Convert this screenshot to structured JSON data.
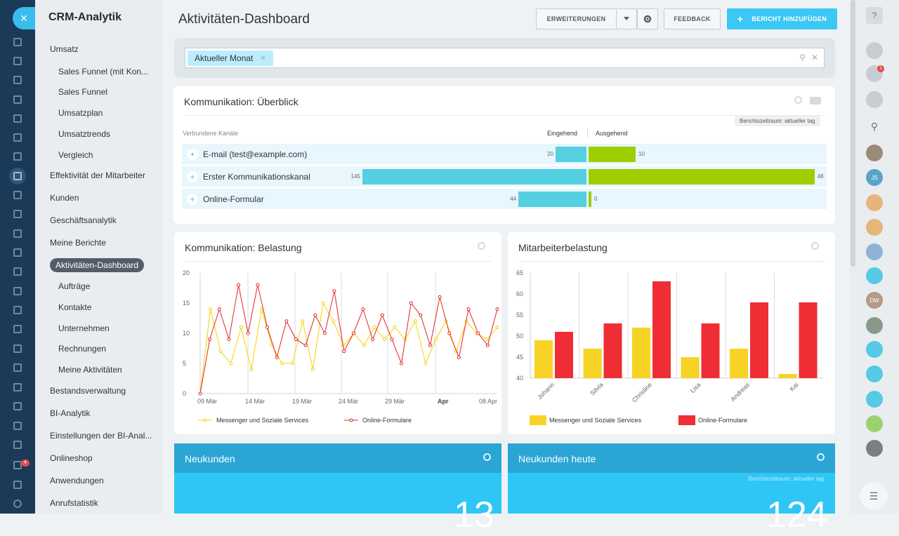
{
  "iconbar": {
    "close_icon": "×",
    "notification_count": "4"
  },
  "menu": {
    "title": "CRM-Analytik",
    "items": [
      {
        "label": "Umsatz",
        "type": "top"
      },
      {
        "label": "Sales Funnel (mit Kon...",
        "type": "sub"
      },
      {
        "label": "Sales Funnel",
        "type": "sub"
      },
      {
        "label": "Umsatzplan",
        "type": "sub"
      },
      {
        "label": "Umsatztrends",
        "type": "sub"
      },
      {
        "label": "Vergleich",
        "type": "sub"
      },
      {
        "label": "Effektivität der Mitarbeiter",
        "type": "top"
      },
      {
        "label": "Kunden",
        "type": "top"
      },
      {
        "label": "Geschäftsanalytik",
        "type": "top"
      },
      {
        "label": "Meine Berichte",
        "type": "top"
      },
      {
        "label": "Aktivitäten-Dashboard",
        "type": "active"
      },
      {
        "label": "Aufträge",
        "type": "sub"
      },
      {
        "label": "Kontakte",
        "type": "sub"
      },
      {
        "label": "Unternehmen",
        "type": "sub"
      },
      {
        "label": "Rechnungen",
        "type": "sub"
      },
      {
        "label": "Meine Aktivitäten",
        "type": "sub"
      },
      {
        "label": "Bestandsverwaltung",
        "type": "top"
      },
      {
        "label": "BI-Analytik",
        "type": "top"
      },
      {
        "label": "Einstellungen der BI-Anal...",
        "type": "top"
      },
      {
        "label": "Onlineshop",
        "type": "top"
      },
      {
        "label": "Anwendungen",
        "type": "top"
      },
      {
        "label": "Anrufstatistik",
        "type": "top"
      }
    ]
  },
  "header": {
    "title": "Aktivitäten-Dashboard",
    "extensions_label": "ERWEITERUNGEN",
    "feedback_label": "FEEDBACK",
    "add_report_label": "BERICHT HINZUFÜGEN"
  },
  "filter": {
    "chip_label": "Aktueller Monat"
  },
  "overview": {
    "title": "Kommunikation: Überblick",
    "period_tag": "Berichtszeitraum: aktueller tag",
    "col_channels": "Verbundene Kanäle",
    "col_in": "Eingehend",
    "col_out": "Ausgehend",
    "rows": [
      {
        "label": "E-mail (test@example.com)",
        "in": 20,
        "out": 10,
        "in_text": "20",
        "out_text": "10"
      },
      {
        "label": "Erster Kommunikationskanal",
        "in": 145,
        "out": 48,
        "in_text": "145",
        "out_text": "48"
      },
      {
        "label": "Online-Formular",
        "in": 44,
        "out": 0,
        "in_text": "44",
        "out_text": "0"
      }
    ]
  },
  "load_card": {
    "title": "Kommunikation: Belastung"
  },
  "employee_card": {
    "title": "Mitarbeiterbelastung"
  },
  "chart_data": [
    {
      "type": "line",
      "title": "Kommunikation: Belastung",
      "ylim": [
        0,
        20
      ],
      "yticks": [
        "0",
        "5",
        "10",
        "15",
        "20"
      ],
      "xtick_labels": [
        "09 Mär",
        "14 Mär",
        "19 Mär",
        "24 Mär",
        "29 Mär",
        "Apr",
        "08 Apr"
      ],
      "colors": {
        "Messenger und Soziale Services": "#f7d000",
        "Online-Formulare": "#e52222"
      },
      "series": [
        {
          "name": "Messenger und Soziale Services",
          "values": [
            0,
            14,
            7,
            5,
            11,
            4,
            14,
            8,
            5,
            5,
            12,
            4,
            15,
            12,
            8,
            10,
            8,
            11,
            9,
            11,
            9,
            12,
            5,
            9,
            12,
            7,
            12,
            10,
            9,
            11
          ]
        },
        {
          "name": "Online-Formulare",
          "values": [
            0,
            9,
            14,
            9,
            18,
            10,
            18,
            11,
            6,
            12,
            9,
            8,
            13,
            10,
            17,
            7,
            10,
            14,
            9,
            13,
            9,
            5,
            15,
            13,
            8,
            16,
            10,
            6,
            14,
            10,
            8,
            14
          ]
        }
      ]
    },
    {
      "type": "bar",
      "title": "Mitarbeiterbelastung",
      "ylim": [
        40,
        65
      ],
      "yticks": [
        "40",
        "45",
        "50",
        "55",
        "60",
        "65"
      ],
      "categories": [
        "Johann",
        "Silvia",
        "Christine",
        "Lisa",
        "Andreas",
        "Kai"
      ],
      "colors": {
        "Messenger und Soziale Services": "#f7d325",
        "Online-Formulare": "#ee2e34"
      },
      "series": [
        {
          "name": "Messenger und Soziale Services",
          "values": [
            49,
            47,
            52,
            45,
            47,
            41
          ]
        },
        {
          "name": "Online-Formulare",
          "values": [
            51,
            53,
            63,
            53,
            58,
            58
          ]
        }
      ]
    }
  ],
  "new_customers": {
    "title": "Neukunden",
    "value": "13"
  },
  "new_customers_today": {
    "title": "Neukunden heute",
    "period_tag": "Berichtszeitraum: aktueller tag",
    "value": "124"
  },
  "rightbar": {
    "help": "?",
    "notif_count": "1",
    "js_initials": "JS",
    "dw_initials": "DW"
  }
}
